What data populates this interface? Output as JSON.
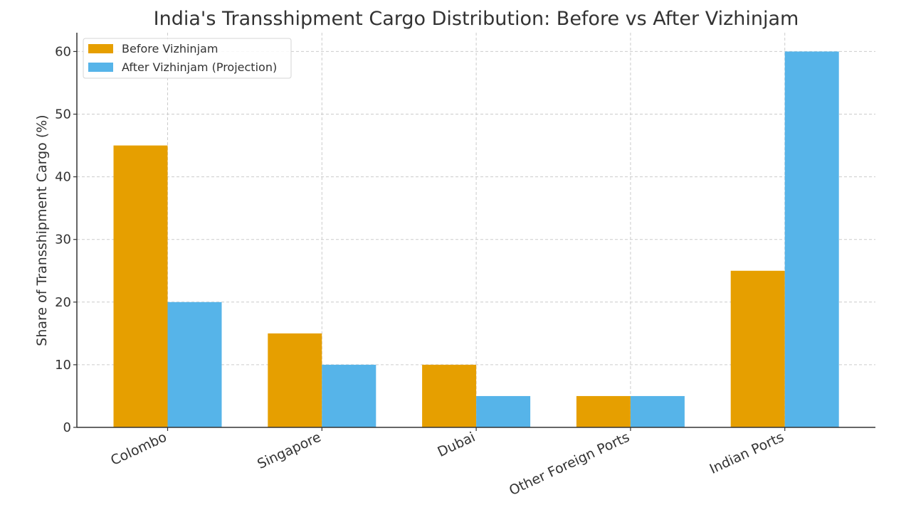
{
  "chart_data": {
    "type": "bar",
    "title": "India's Transshipment Cargo Distribution: Before vs After Vizhinjam",
    "xlabel": "",
    "ylabel": "Share of Transshipment Cargo (%)",
    "categories": [
      "Colombo",
      "Singapore",
      "Dubai",
      "Other Foreign Ports",
      "Indian Ports"
    ],
    "series": [
      {
        "name": "Before Vizhinjam",
        "values": [
          45,
          15,
          10,
          5,
          25
        ],
        "color": "#E69F00"
      },
      {
        "name": "After Vizhinjam (Projection)",
        "values": [
          20,
          10,
          5,
          5,
          60
        ],
        "color": "#56B4E9"
      }
    ],
    "ylim": [
      0,
      63
    ],
    "yticks": [
      0,
      10,
      20,
      30,
      40,
      50,
      60
    ],
    "grid": true,
    "legend_position": "top-left"
  }
}
